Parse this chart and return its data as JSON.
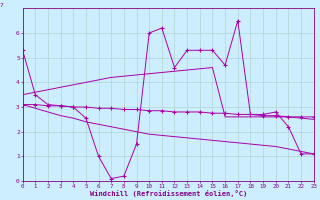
{
  "xlabel": "Windchill (Refroidissement éolien,°C)",
  "xlim": [
    0,
    23
  ],
  "ylim": [
    0,
    7
  ],
  "yticks": [
    0,
    1,
    2,
    3,
    4,
    5,
    6
  ],
  "xticks": [
    0,
    1,
    2,
    3,
    4,
    5,
    6,
    7,
    8,
    9,
    10,
    11,
    12,
    13,
    14,
    15,
    16,
    17,
    18,
    19,
    20,
    21,
    22,
    23
  ],
  "background_color": "#cceeff",
  "grid_color": "#aacccc",
  "line_color": "#aa00aa",
  "line1_x": [
    0,
    1,
    2,
    3,
    4,
    5,
    6,
    7,
    8,
    9,
    10,
    11,
    12,
    13,
    14,
    15,
    16,
    17,
    18,
    19,
    20,
    21,
    22,
    23
  ],
  "line1_y": [
    5.3,
    3.5,
    3.1,
    3.05,
    3.0,
    2.55,
    1.0,
    0.1,
    0.2,
    1.5,
    6.0,
    6.2,
    4.6,
    5.3,
    5.3,
    5.3,
    4.7,
    6.5,
    2.7,
    2.7,
    2.8,
    2.2,
    1.1,
    1.1
  ],
  "line2_x": [
    0,
    1,
    2,
    3,
    4,
    5,
    6,
    7,
    8,
    9,
    10,
    11,
    12,
    13,
    14,
    15,
    16,
    17,
    18,
    19,
    20,
    21,
    22,
    23
  ],
  "line2_y": [
    3.1,
    3.1,
    3.05,
    3.05,
    3.0,
    3.0,
    2.95,
    2.95,
    2.9,
    2.9,
    2.85,
    2.85,
    2.8,
    2.8,
    2.8,
    2.75,
    2.75,
    2.7,
    2.7,
    2.65,
    2.65,
    2.6,
    2.6,
    2.6
  ],
  "line3_x": [
    0,
    1,
    2,
    3,
    4,
    5,
    6,
    7,
    8,
    9,
    10,
    11,
    12,
    13,
    14,
    15,
    16,
    17,
    18,
    19,
    20,
    21,
    22,
    23
  ],
  "line3_y": [
    3.1,
    2.95,
    2.8,
    2.65,
    2.55,
    2.4,
    2.3,
    2.2,
    2.1,
    2.0,
    1.9,
    1.85,
    1.8,
    1.75,
    1.7,
    1.65,
    1.6,
    1.55,
    1.5,
    1.45,
    1.4,
    1.3,
    1.2,
    1.1
  ],
  "line4_x": [
    0,
    1,
    2,
    3,
    4,
    5,
    6,
    7,
    8,
    9,
    10,
    11,
    12,
    13,
    14,
    15,
    16,
    17,
    18,
    19,
    20,
    21,
    22,
    23
  ],
  "line4_y": [
    3.5,
    3.6,
    3.7,
    3.8,
    3.9,
    4.0,
    4.1,
    4.2,
    4.25,
    4.3,
    4.35,
    4.4,
    4.45,
    4.5,
    4.55,
    4.6,
    2.6,
    2.6,
    2.6,
    2.6,
    2.6,
    2.6,
    2.55,
    2.5
  ]
}
